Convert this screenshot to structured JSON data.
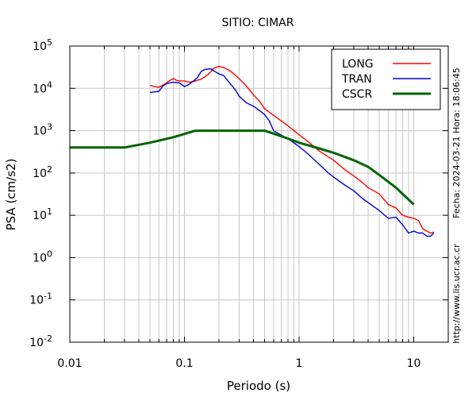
{
  "chart_data": {
    "type": "line",
    "title": "SITIO: CIMAR",
    "xlabel": "Periodo (s)",
    "ylabel": "PSA (cm/s2)",
    "x_scale": "log",
    "y_scale": "log",
    "xlim": [
      0.01,
      20
    ],
    "ylim": [
      0.01,
      100000
    ],
    "grid": true,
    "legend_position": "top-right",
    "x_ticks": [
      {
        "value": 0.01,
        "label": "0.01"
      },
      {
        "value": 0.1,
        "label": "0.1"
      },
      {
        "value": 1,
        "label": "1"
      },
      {
        "value": 10,
        "label": "10"
      }
    ],
    "y_ticks": [
      {
        "value": 0.01,
        "base": "10",
        "exp": "-2"
      },
      {
        "value": 0.1,
        "base": "10",
        "exp": "-1"
      },
      {
        "value": 1,
        "base": "10",
        "exp": "0"
      },
      {
        "value": 10,
        "base": "10",
        "exp": "1"
      },
      {
        "value": 100,
        "base": "10",
        "exp": "2"
      },
      {
        "value": 1000,
        "base": "10",
        "exp": "3"
      },
      {
        "value": 10000,
        "base": "10",
        "exp": "4"
      },
      {
        "value": 100000,
        "base": "10",
        "exp": "5"
      }
    ],
    "annotations": {
      "date": "Fecha: 2024-03-21 Hora: 18:06:45",
      "url": "http://www.lis.ucr.ac.cr"
    },
    "series": [
      {
        "name": "LONG",
        "color": "#ff0000",
        "width": 1.4,
        "points": [
          [
            0.05,
            11800
          ],
          [
            0.055,
            11000
          ],
          [
            0.06,
            10600
          ],
          [
            0.065,
            12000
          ],
          [
            0.07,
            13500
          ],
          [
            0.075,
            15500
          ],
          [
            0.08,
            17000
          ],
          [
            0.085,
            15500
          ],
          [
            0.09,
            15000
          ],
          [
            0.1,
            15000
          ],
          [
            0.11,
            14000
          ],
          [
            0.12,
            14500
          ],
          [
            0.13,
            15500
          ],
          [
            0.14,
            16500
          ],
          [
            0.15,
            18500
          ],
          [
            0.16,
            21000
          ],
          [
            0.17,
            25000
          ],
          [
            0.18,
            30000
          ],
          [
            0.2,
            33000
          ],
          [
            0.22,
            31000
          ],
          [
            0.25,
            26000
          ],
          [
            0.28,
            20000
          ],
          [
            0.3,
            17000
          ],
          [
            0.35,
            11000
          ],
          [
            0.4,
            7000
          ],
          [
            0.45,
            5000
          ],
          [
            0.5,
            3300
          ],
          [
            0.6,
            2300
          ],
          [
            0.7,
            1700
          ],
          [
            0.8,
            1300
          ],
          [
            1.0,
            800
          ],
          [
            1.2,
            550
          ],
          [
            1.5,
            330
          ],
          [
            2.0,
            200
          ],
          [
            2.5,
            120
          ],
          [
            3.0,
            85
          ],
          [
            3.5,
            62
          ],
          [
            4.0,
            45
          ],
          [
            5.0,
            32
          ],
          [
            6.0,
            18
          ],
          [
            7.0,
            15
          ],
          [
            8.0,
            10
          ],
          [
            9.0,
            9
          ],
          [
            10.0,
            8.5
          ],
          [
            11.0,
            7.5
          ],
          [
            12.0,
            4.8
          ],
          [
            13.0,
            4.2
          ],
          [
            14.0,
            3.8
          ],
          [
            15.0,
            4.0
          ]
        ]
      },
      {
        "name": "TRAN",
        "color": "#0000d0",
        "width": 1.4,
        "points": [
          [
            0.05,
            8000
          ],
          [
            0.06,
            8500
          ],
          [
            0.065,
            11500
          ],
          [
            0.07,
            13000
          ],
          [
            0.08,
            14000
          ],
          [
            0.09,
            13500
          ],
          [
            0.1,
            11000
          ],
          [
            0.11,
            12500
          ],
          [
            0.12,
            15000
          ],
          [
            0.13,
            18000
          ],
          [
            0.14,
            25000
          ],
          [
            0.15,
            28000
          ],
          [
            0.17,
            29000
          ],
          [
            0.18,
            26000
          ],
          [
            0.2,
            22000
          ],
          [
            0.22,
            20000
          ],
          [
            0.25,
            13000
          ],
          [
            0.28,
            9000
          ],
          [
            0.3,
            6500
          ],
          [
            0.35,
            4500
          ],
          [
            0.4,
            3800
          ],
          [
            0.45,
            3000
          ],
          [
            0.5,
            2400
          ],
          [
            0.55,
            1700
          ],
          [
            0.6,
            1000
          ],
          [
            0.7,
            780
          ],
          [
            0.8,
            650
          ],
          [
            1.0,
            420
          ],
          [
            1.2,
            280
          ],
          [
            1.5,
            160
          ],
          [
            1.8,
            100
          ],
          [
            2.0,
            80
          ],
          [
            2.5,
            52
          ],
          [
            3.0,
            38
          ],
          [
            3.5,
            26
          ],
          [
            4.0,
            20
          ],
          [
            5.0,
            13
          ],
          [
            6.0,
            8.5
          ],
          [
            7.0,
            9
          ],
          [
            8.0,
            6
          ],
          [
            9.0,
            3.8
          ],
          [
            10.0,
            4.2
          ],
          [
            11.0,
            3.8
          ],
          [
            12.0,
            3.8
          ],
          [
            13.0,
            3.2
          ],
          [
            14.0,
            3.2
          ],
          [
            15.0,
            3.8
          ]
        ]
      },
      {
        "name": "CSCR",
        "color": "#006400",
        "width": 3,
        "points": [
          [
            0.01,
            400
          ],
          [
            0.03,
            400
          ],
          [
            0.05,
            520
          ],
          [
            0.08,
            700
          ],
          [
            0.125,
            1000
          ],
          [
            0.15,
            1000
          ],
          [
            0.3,
            1000
          ],
          [
            0.5,
            1000
          ],
          [
            0.6,
            850
          ],
          [
            0.8,
            650
          ],
          [
            1.0,
            520
          ],
          [
            1.5,
            380
          ],
          [
            2.0,
            300
          ],
          [
            3.0,
            200
          ],
          [
            4.0,
            140
          ],
          [
            5.0,
            90
          ],
          [
            7.0,
            45
          ],
          [
            10.0,
            18
          ]
        ]
      }
    ]
  }
}
